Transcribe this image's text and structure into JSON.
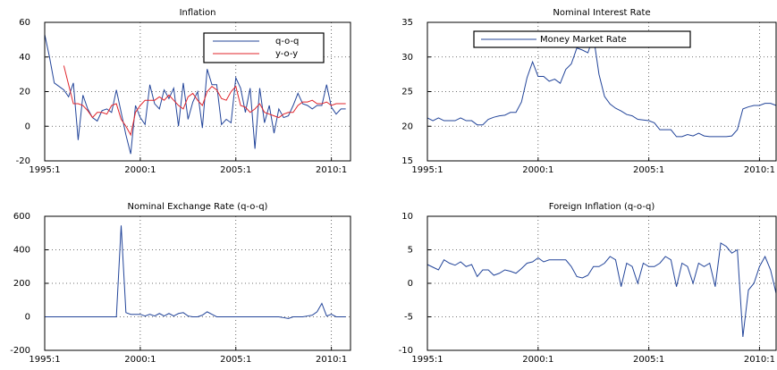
{
  "chart_data": [
    {
      "type": "line",
      "title": "Inflation",
      "x": [
        1995,
        1995.25,
        1995.5,
        1995.75,
        1996,
        1996.25,
        1996.5,
        1996.75,
        1997,
        1997.25,
        1997.5,
        1997.75,
        1998,
        1998.25,
        1998.5,
        1998.75,
        1999,
        1999.25,
        1999.5,
        1999.75,
        2000,
        2000.25,
        2000.5,
        2000.75,
        2001,
        2001.25,
        2001.5,
        2001.75,
        2002,
        2002.25,
        2002.5,
        2002.75,
        2003,
        2003.25,
        2003.5,
        2003.75,
        2004,
        2004.25,
        2004.5,
        2004.75,
        2005,
        2005.25,
        2005.5,
        2005.75,
        2006,
        2006.25,
        2006.5,
        2006.75,
        2007,
        2007.25,
        2007.5,
        2007.75,
        2008,
        2008.25,
        2008.5,
        2008.75,
        2009,
        2009.25,
        2009.5,
        2009.75,
        2010,
        2010.25,
        2010.5,
        2010.75
      ],
      "series": [
        {
          "name": "q-o-q",
          "color": "#23459a",
          "values": [
            53,
            40,
            25,
            23,
            21,
            17,
            25,
            -8,
            18,
            10,
            5,
            3,
            9,
            10,
            8,
            21,
            8,
            -5,
            -16,
            12,
            5,
            1,
            24,
            13,
            10,
            21,
            16,
            22,
            0,
            25,
            4,
            14,
            20,
            -1,
            33,
            24,
            24,
            1,
            4,
            2,
            28,
            22,
            8,
            22,
            -13,
            22,
            2,
            12,
            -4,
            10,
            5,
            6,
            12,
            19,
            13,
            12,
            10,
            12,
            12,
            24,
            11,
            7,
            10,
            10
          ]
        },
        {
          "name": "y-o-y",
          "color": "#e0242b",
          "values": [
            null,
            null,
            null,
            null,
            35,
            24,
            13,
            13,
            12,
            9,
            5,
            8,
            8,
            7,
            12,
            13,
            4,
            0,
            -5,
            8,
            12,
            15,
            15,
            15,
            17,
            15,
            18,
            15,
            12,
            10,
            17,
            19,
            15,
            12,
            20,
            23,
            21,
            16,
            15,
            20,
            23,
            12,
            11,
            8,
            10,
            13,
            8,
            7,
            6,
            5,
            7,
            8,
            8,
            12,
            14,
            14,
            15,
            13,
            13,
            14,
            12,
            13,
            13,
            13
          ]
        }
      ],
      "xlim": [
        1995,
        2011
      ],
      "ylim": [
        -20,
        60
      ],
      "xticks": [
        {
          "value": 1995,
          "label": "1995:1"
        },
        {
          "value": 2000,
          "label": "2000:1"
        },
        {
          "value": 2005,
          "label": "2005:1"
        },
        {
          "value": 2010,
          "label": "2010:1"
        }
      ],
      "yticks": [
        -20,
        0,
        20,
        40,
        60
      ],
      "grid": true,
      "legend": "upper right"
    },
    {
      "type": "line",
      "title": "Nominal Interest Rate",
      "x": [
        1995,
        1995.25,
        1995.5,
        1995.75,
        1996,
        1996.25,
        1996.5,
        1996.75,
        1997,
        1997.25,
        1997.5,
        1997.75,
        1998,
        1998.25,
        1998.5,
        1998.75,
        1999,
        1999.25,
        1999.5,
        1999.75,
        2000,
        2000.25,
        2000.5,
        2000.75,
        2001,
        2001.25,
        2001.5,
        2001.75,
        2002,
        2002.25,
        2002.5,
        2002.75,
        2003,
        2003.25,
        2003.5,
        2003.75,
        2004,
        2004.25,
        2004.5,
        2004.75,
        2005,
        2005.25,
        2005.5,
        2005.75,
        2006,
        2006.25,
        2006.5,
        2006.75,
        2007,
        2007.25,
        2007.5,
        2007.75,
        2008,
        2008.25,
        2008.5,
        2008.75,
        2009,
        2009.25,
        2009.5,
        2009.75,
        2010,
        2010.25,
        2010.5,
        2010.75
      ],
      "series": [
        {
          "name": "Money Market Rate",
          "color": "#23459a",
          "values": [
            21.2,
            20.8,
            21.2,
            20.8,
            20.8,
            20.8,
            21.2,
            20.8,
            20.8,
            20.2,
            20.2,
            21,
            21.3,
            21.5,
            21.6,
            22,
            22,
            23.5,
            27,
            29.3,
            27.2,
            27.2,
            26.5,
            26.8,
            26.2,
            28.2,
            29,
            31.3,
            31,
            30.6,
            33,
            27.5,
            24.3,
            23.2,
            22.6,
            22.2,
            21.7,
            21.5,
            21,
            20.9,
            20.8,
            20.5,
            19.5,
            19.5,
            19.5,
            18.5,
            18.5,
            18.8,
            18.6,
            19,
            18.6,
            18.5,
            18.5,
            18.5,
            18.5,
            18.6,
            19.5,
            22.5,
            22.8,
            23,
            23,
            23.3,
            23.3,
            23
          ]
        }
      ],
      "xlim": [
        1995,
        2010.75
      ],
      "ylim": [
        15,
        35
      ],
      "xticks": [
        {
          "value": 1995,
          "label": "1995:1"
        },
        {
          "value": 2000,
          "label": "2000:1"
        },
        {
          "value": 2005,
          "label": "2005:1"
        },
        {
          "value": 2010,
          "label": "2010:1"
        }
      ],
      "yticks": [
        15,
        20,
        25,
        30,
        35
      ],
      "grid": true,
      "legend": "upper left"
    },
    {
      "type": "line",
      "title": "Nominal Exchange Rate (q-o-q)",
      "x": [
        1995,
        1995.25,
        1995.5,
        1995.75,
        1996,
        1996.25,
        1996.5,
        1996.75,
        1997,
        1997.25,
        1997.5,
        1997.75,
        1998,
        1998.25,
        1998.5,
        1998.75,
        1999,
        1999.25,
        1999.5,
        1999.75,
        2000,
        2000.25,
        2000.5,
        2000.75,
        2001,
        2001.25,
        2001.5,
        2001.75,
        2002,
        2002.25,
        2002.5,
        2002.75,
        2003,
        2003.25,
        2003.5,
        2003.75,
        2004,
        2004.25,
        2004.5,
        2004.75,
        2005,
        2005.25,
        2005.5,
        2005.75,
        2006,
        2006.25,
        2006.5,
        2006.75,
        2007,
        2007.25,
        2007.5,
        2007.75,
        2008,
        2008.25,
        2008.5,
        2008.75,
        2009,
        2009.25,
        2009.5,
        2009.75,
        2010,
        2010.25,
        2010.5,
        2010.75
      ],
      "series": [
        {
          "color": "#23459a",
          "values": [
            0,
            0,
            0,
            0,
            0,
            0,
            0,
            0,
            0,
            0,
            0,
            0,
            0,
            0,
            0,
            0,
            545,
            25,
            15,
            15,
            15,
            5,
            15,
            5,
            20,
            5,
            20,
            5,
            20,
            25,
            5,
            0,
            0,
            10,
            30,
            15,
            0,
            0,
            0,
            0,
            0,
            0,
            0,
            0,
            0,
            0,
            0,
            0,
            0,
            0,
            -5,
            -10,
            0,
            0,
            0,
            5,
            10,
            30,
            80,
            5,
            15,
            0,
            0,
            0
          ]
        }
      ],
      "xlim": [
        1995,
        2011
      ],
      "ylim": [
        -200,
        600
      ],
      "xticks": [
        {
          "value": 1995,
          "label": "1995:1"
        },
        {
          "value": 2000,
          "label": "2000:1"
        },
        {
          "value": 2005,
          "label": "2005:1"
        },
        {
          "value": 2010,
          "label": "2010:1"
        }
      ],
      "yticks": [
        -200,
        0,
        200,
        400,
        600
      ],
      "grid": true
    },
    {
      "type": "line",
      "title": "Foreign Inflation (q-o-q)",
      "x": [
        1995,
        1995.25,
        1995.5,
        1995.75,
        1996,
        1996.25,
        1996.5,
        1996.75,
        1997,
        1997.25,
        1997.5,
        1997.75,
        1998,
        1998.25,
        1998.5,
        1998.75,
        1999,
        1999.25,
        1999.5,
        1999.75,
        2000,
        2000.25,
        2000.5,
        2000.75,
        2001,
        2001.25,
        2001.5,
        2001.75,
        2002,
        2002.25,
        2002.5,
        2002.75,
        2003,
        2003.25,
        2003.5,
        2003.75,
        2004,
        2004.25,
        2004.5,
        2004.75,
        2005,
        2005.25,
        2005.5,
        2005.75,
        2006,
        2006.25,
        2006.5,
        2006.75,
        2007,
        2007.25,
        2007.5,
        2007.75,
        2008,
        2008.25,
        2008.5,
        2008.75,
        2009,
        2009.25,
        2009.5,
        2009.75,
        2010,
        2010.25,
        2010.5,
        2010.75
      ],
      "series": [
        {
          "color": "#23459a",
          "values": [
            2.8,
            2.4,
            2,
            3.5,
            3,
            2.7,
            3.2,
            2.5,
            2.8,
            1,
            2,
            2,
            1.2,
            1.5,
            2,
            1.8,
            1.5,
            2.2,
            3,
            3.2,
            3.8,
            3.2,
            3.5,
            3.5,
            3.5,
            3.5,
            2.5,
            1,
            0.8,
            1.2,
            2.5,
            2.5,
            3,
            4,
            3.5,
            -0.5,
            3,
            2.5,
            0,
            3,
            2.5,
            2.5,
            3,
            4,
            3.5,
            -0.5,
            3,
            2.5,
            0,
            3,
            2.5,
            3,
            -0.5,
            6,
            5.5,
            4.5,
            5,
            -8,
            -1,
            0,
            2.5,
            4,
            2,
            -1.5
          ]
        }
      ],
      "xlim": [
        1995,
        2010.75
      ],
      "ylim": [
        -10,
        10
      ],
      "xticks": [
        {
          "value": 1995,
          "label": "1995:1"
        },
        {
          "value": 2000,
          "label": "2000:1"
        },
        {
          "value": 2005,
          "label": "2005:1"
        },
        {
          "value": 2010,
          "label": "2010:1"
        }
      ],
      "yticks": [
        -10,
        -5,
        0,
        5,
        10
      ],
      "grid": true
    }
  ]
}
